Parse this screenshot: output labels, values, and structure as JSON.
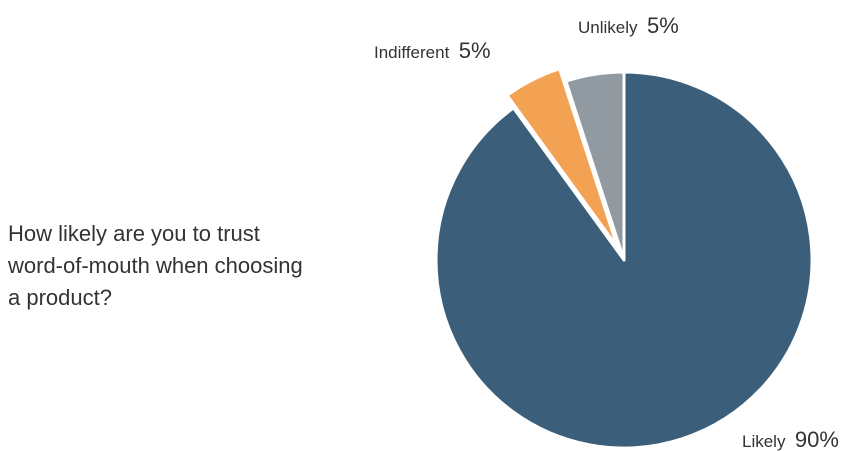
{
  "question": {
    "lines": [
      "How likely are you to trust",
      "word-of-mouth when choosing",
      "a product?"
    ]
  },
  "chart_data": {
    "type": "pie",
    "slices": [
      {
        "label": "Likely",
        "value": 90,
        "display": "90%",
        "color": "#3b5f7a",
        "exploded": false
      },
      {
        "label": "Indifferent",
        "value": 5,
        "display": "5%",
        "color": "#f2a252",
        "exploded": true
      },
      {
        "label": "Unlikely",
        "value": 5,
        "display": "5%",
        "color": "#9199a1",
        "exploded": false
      }
    ]
  }
}
